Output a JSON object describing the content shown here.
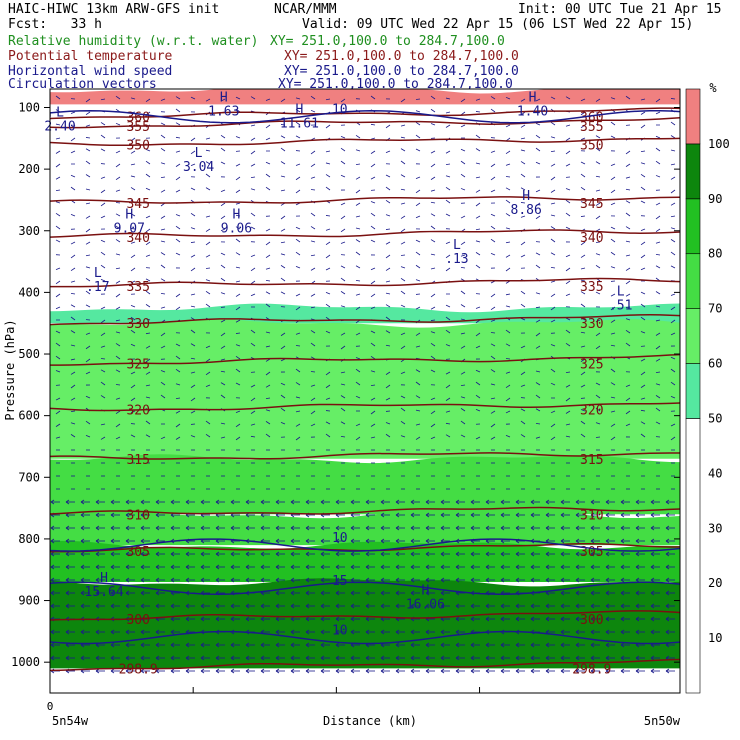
{
  "header": {
    "model": "HAIC-HIWC 13km ARW-GFS init",
    "center": "NCAR/MMM",
    "init": "Init: 00 UTC Tue 21 Apr 15",
    "fcst": "Fcst:   33 h",
    "valid": "Valid: 09 UTC Wed 22 Apr 15 (06 LST Wed 22 Apr 15)",
    "fields": [
      {
        "name": "Relative humidity (w.r.t. water)",
        "xy": "XY= 251.0,100.0 to 284.7,100.0",
        "color": "#1f8f1f"
      },
      {
        "name": "Potential temperature",
        "xy": "XY= 251.0,100.0 to 284.7,100.0",
        "color": "#8b1a1a"
      },
      {
        "name": "Horizontal wind speed",
        "xy": "XY= 251.0,100.0 to 284.7,100.0",
        "color": "#1a1a8b"
      },
      {
        "name": "Circulation vectors",
        "xy": "XY= 251.0,100.0 to 284.7,100.0",
        "color": "#1a1a8b"
      }
    ]
  },
  "chart_data": {
    "type": "heatmap",
    "xlabel": "Distance (km)",
    "ylabel": "Pressure (hPa)",
    "x_start_tick": "0",
    "x_left_label": "5n54w",
    "x_right_label": "5n50w",
    "y_ticks": [
      100,
      200,
      300,
      400,
      500,
      600,
      700,
      800,
      900,
      1000
    ],
    "ylim": [
      1050,
      70
    ],
    "colorbar": {
      "unit": "%",
      "ticks": [
        10,
        20,
        30,
        40,
        50,
        60,
        70,
        80,
        90,
        100
      ],
      "bands": [
        {
          "from": 0,
          "to": 50,
          "color": "#ffffff"
        },
        {
          "from": 50,
          "to": 60,
          "color": "#55e8a0"
        },
        {
          "from": 60,
          "to": 70,
          "color": "#66ee66"
        },
        {
          "from": 70,
          "to": 80,
          "color": "#44dd44"
        },
        {
          "from": 80,
          "to": 90,
          "color": "#22c022"
        },
        {
          "from": 90,
          "to": 100,
          "color": "#0d860d"
        },
        {
          "from": 100,
          "to": 110,
          "color": "#f08080"
        }
      ]
    },
    "rh_regions": [
      {
        "p_top": 425,
        "p_bottom": 450,
        "rh": 55
      },
      {
        "p_top": 450,
        "p_bottom": 670,
        "rh": 65
      },
      {
        "p_top": 670,
        "p_bottom": 760,
        "rh": 70
      },
      {
        "p_top": 760,
        "p_bottom": 810,
        "rh": 75
      },
      {
        "p_top": 810,
        "p_bottom": 870,
        "rh": 85
      },
      {
        "p_top": 870,
        "p_bottom": 1010,
        "rh": 95
      },
      {
        "p_top": 70,
        "p_bottom": 95,
        "rh": 105
      }
    ],
    "theta_contours": [
      {
        "value": 298.9,
        "label": "298.9",
        "pressure": 1010
      },
      {
        "value": 300,
        "label": "300",
        "pressure": 930
      },
      {
        "value": 305,
        "label": "305",
        "pressure": 820
      },
      {
        "value": 310,
        "label": "310",
        "pressure": 760
      },
      {
        "value": 315,
        "label": "315",
        "pressure": 670
      },
      {
        "value": 320,
        "label": "320",
        "pressure": 590
      },
      {
        "value": 325,
        "label": "325",
        "pressure": 515
      },
      {
        "value": 330,
        "label": "330",
        "pressure": 450
      },
      {
        "value": 335,
        "label": "335",
        "pressure": 390
      },
      {
        "value": 340,
        "label": "340",
        "pressure": 310
      },
      {
        "value": 345,
        "label": "345",
        "pressure": 255
      },
      {
        "value": 350,
        "label": "350",
        "pressure": 160
      },
      {
        "value": 355,
        "label": "355",
        "pressure": 130
      },
      {
        "value": 360,
        "label": "360",
        "pressure": 115
      }
    ],
    "wind_contours": [
      {
        "value": 10,
        "label": "10",
        "pressure": 810
      },
      {
        "value": 15,
        "label": "15",
        "pressure": 880
      },
      {
        "value": 10,
        "label": "10",
        "pressure": 960
      },
      {
        "value": 10,
        "label": "10",
        "pressure": 115
      }
    ],
    "extrema": [
      {
        "type": "H",
        "value": "15.64",
        "x_frac": 0.07,
        "pressure": 870
      },
      {
        "type": "H",
        "value": "16.06",
        "x_frac": 0.58,
        "pressure": 890
      },
      {
        "type": "H",
        "value": "9.07",
        "x_frac": 0.11,
        "pressure": 280
      },
      {
        "type": "H",
        "value": "9.06",
        "x_frac": 0.28,
        "pressure": 280
      },
      {
        "type": "H",
        "value": "8.86",
        "x_frac": 0.74,
        "pressure": 250
      },
      {
        "type": "L",
        "value": "3.04",
        "x_frac": 0.22,
        "pressure": 180
      },
      {
        "type": "L",
        "value": ".13",
        "x_frac": 0.63,
        "pressure": 330
      },
      {
        "type": "L",
        "value": ".17",
        "x_frac": 0.06,
        "pressure": 375
      },
      {
        "type": "L",
        "value": ".51",
        "x_frac": 0.89,
        "pressure": 405
      },
      {
        "type": "H",
        "value": "11.61",
        "x_frac": 0.38,
        "pressure": 110
      },
      {
        "type": "H",
        "value": "1.63",
        "x_frac": 0.26,
        "pressure": 90
      },
      {
        "type": "H",
        "value": "1.40",
        "x_frac": 0.75,
        "pressure": 90
      },
      {
        "type": "L",
        "value": "2.40",
        "x_frac": 0.0,
        "pressure": 115
      }
    ]
  }
}
